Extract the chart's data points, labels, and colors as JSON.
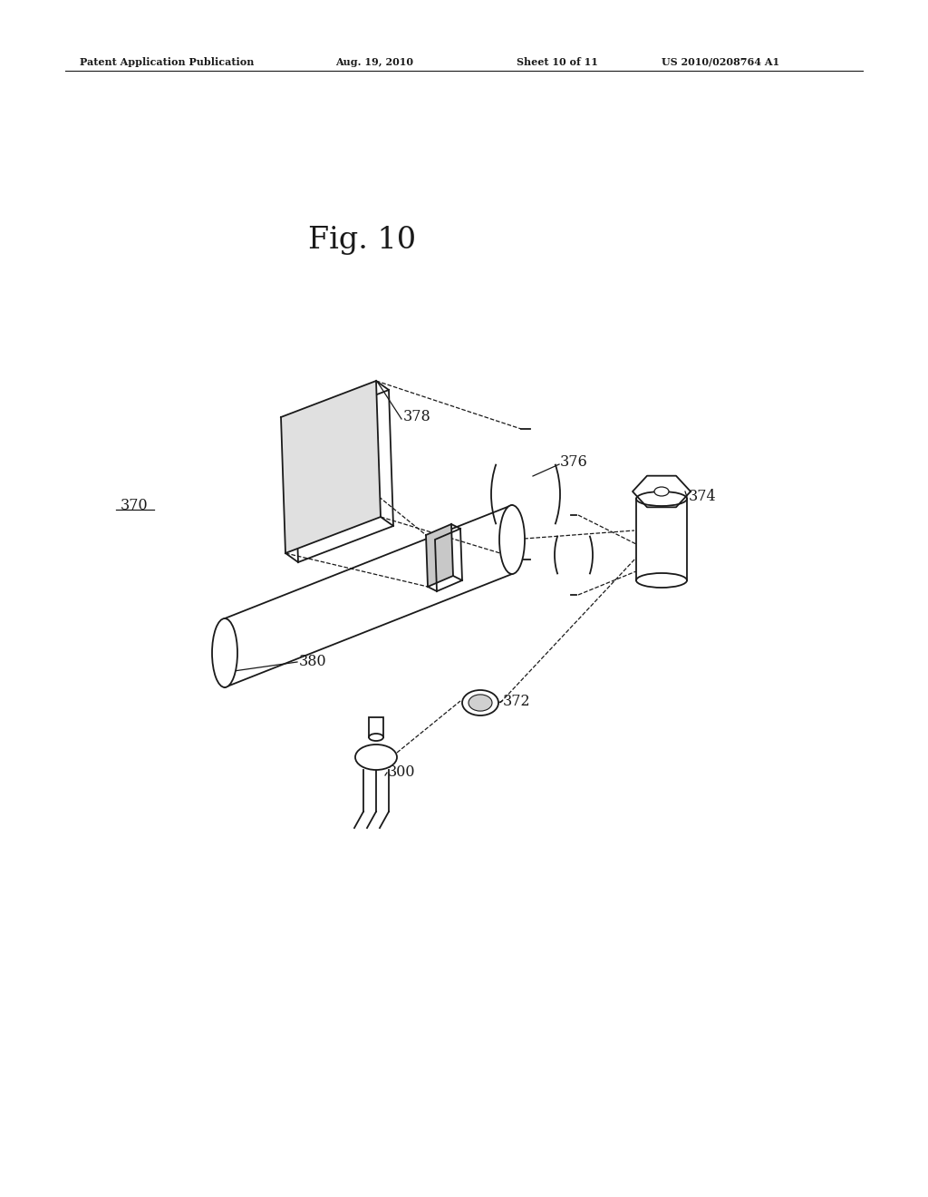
{
  "bg_color": "#ffffff",
  "line_color": "#1a1a1a",
  "header_text": "Patent Application Publication",
  "header_date": "Aug. 19, 2010",
  "header_sheet": "Sheet 10 of 11",
  "header_patent": "US 2010/0208764 A1",
  "fig_label": "Fig. 10",
  "label_370": "370",
  "label_378": "378",
  "label_376": "376",
  "label_374": "374",
  "label_380": "380",
  "label_372": "372",
  "label_300": "300"
}
